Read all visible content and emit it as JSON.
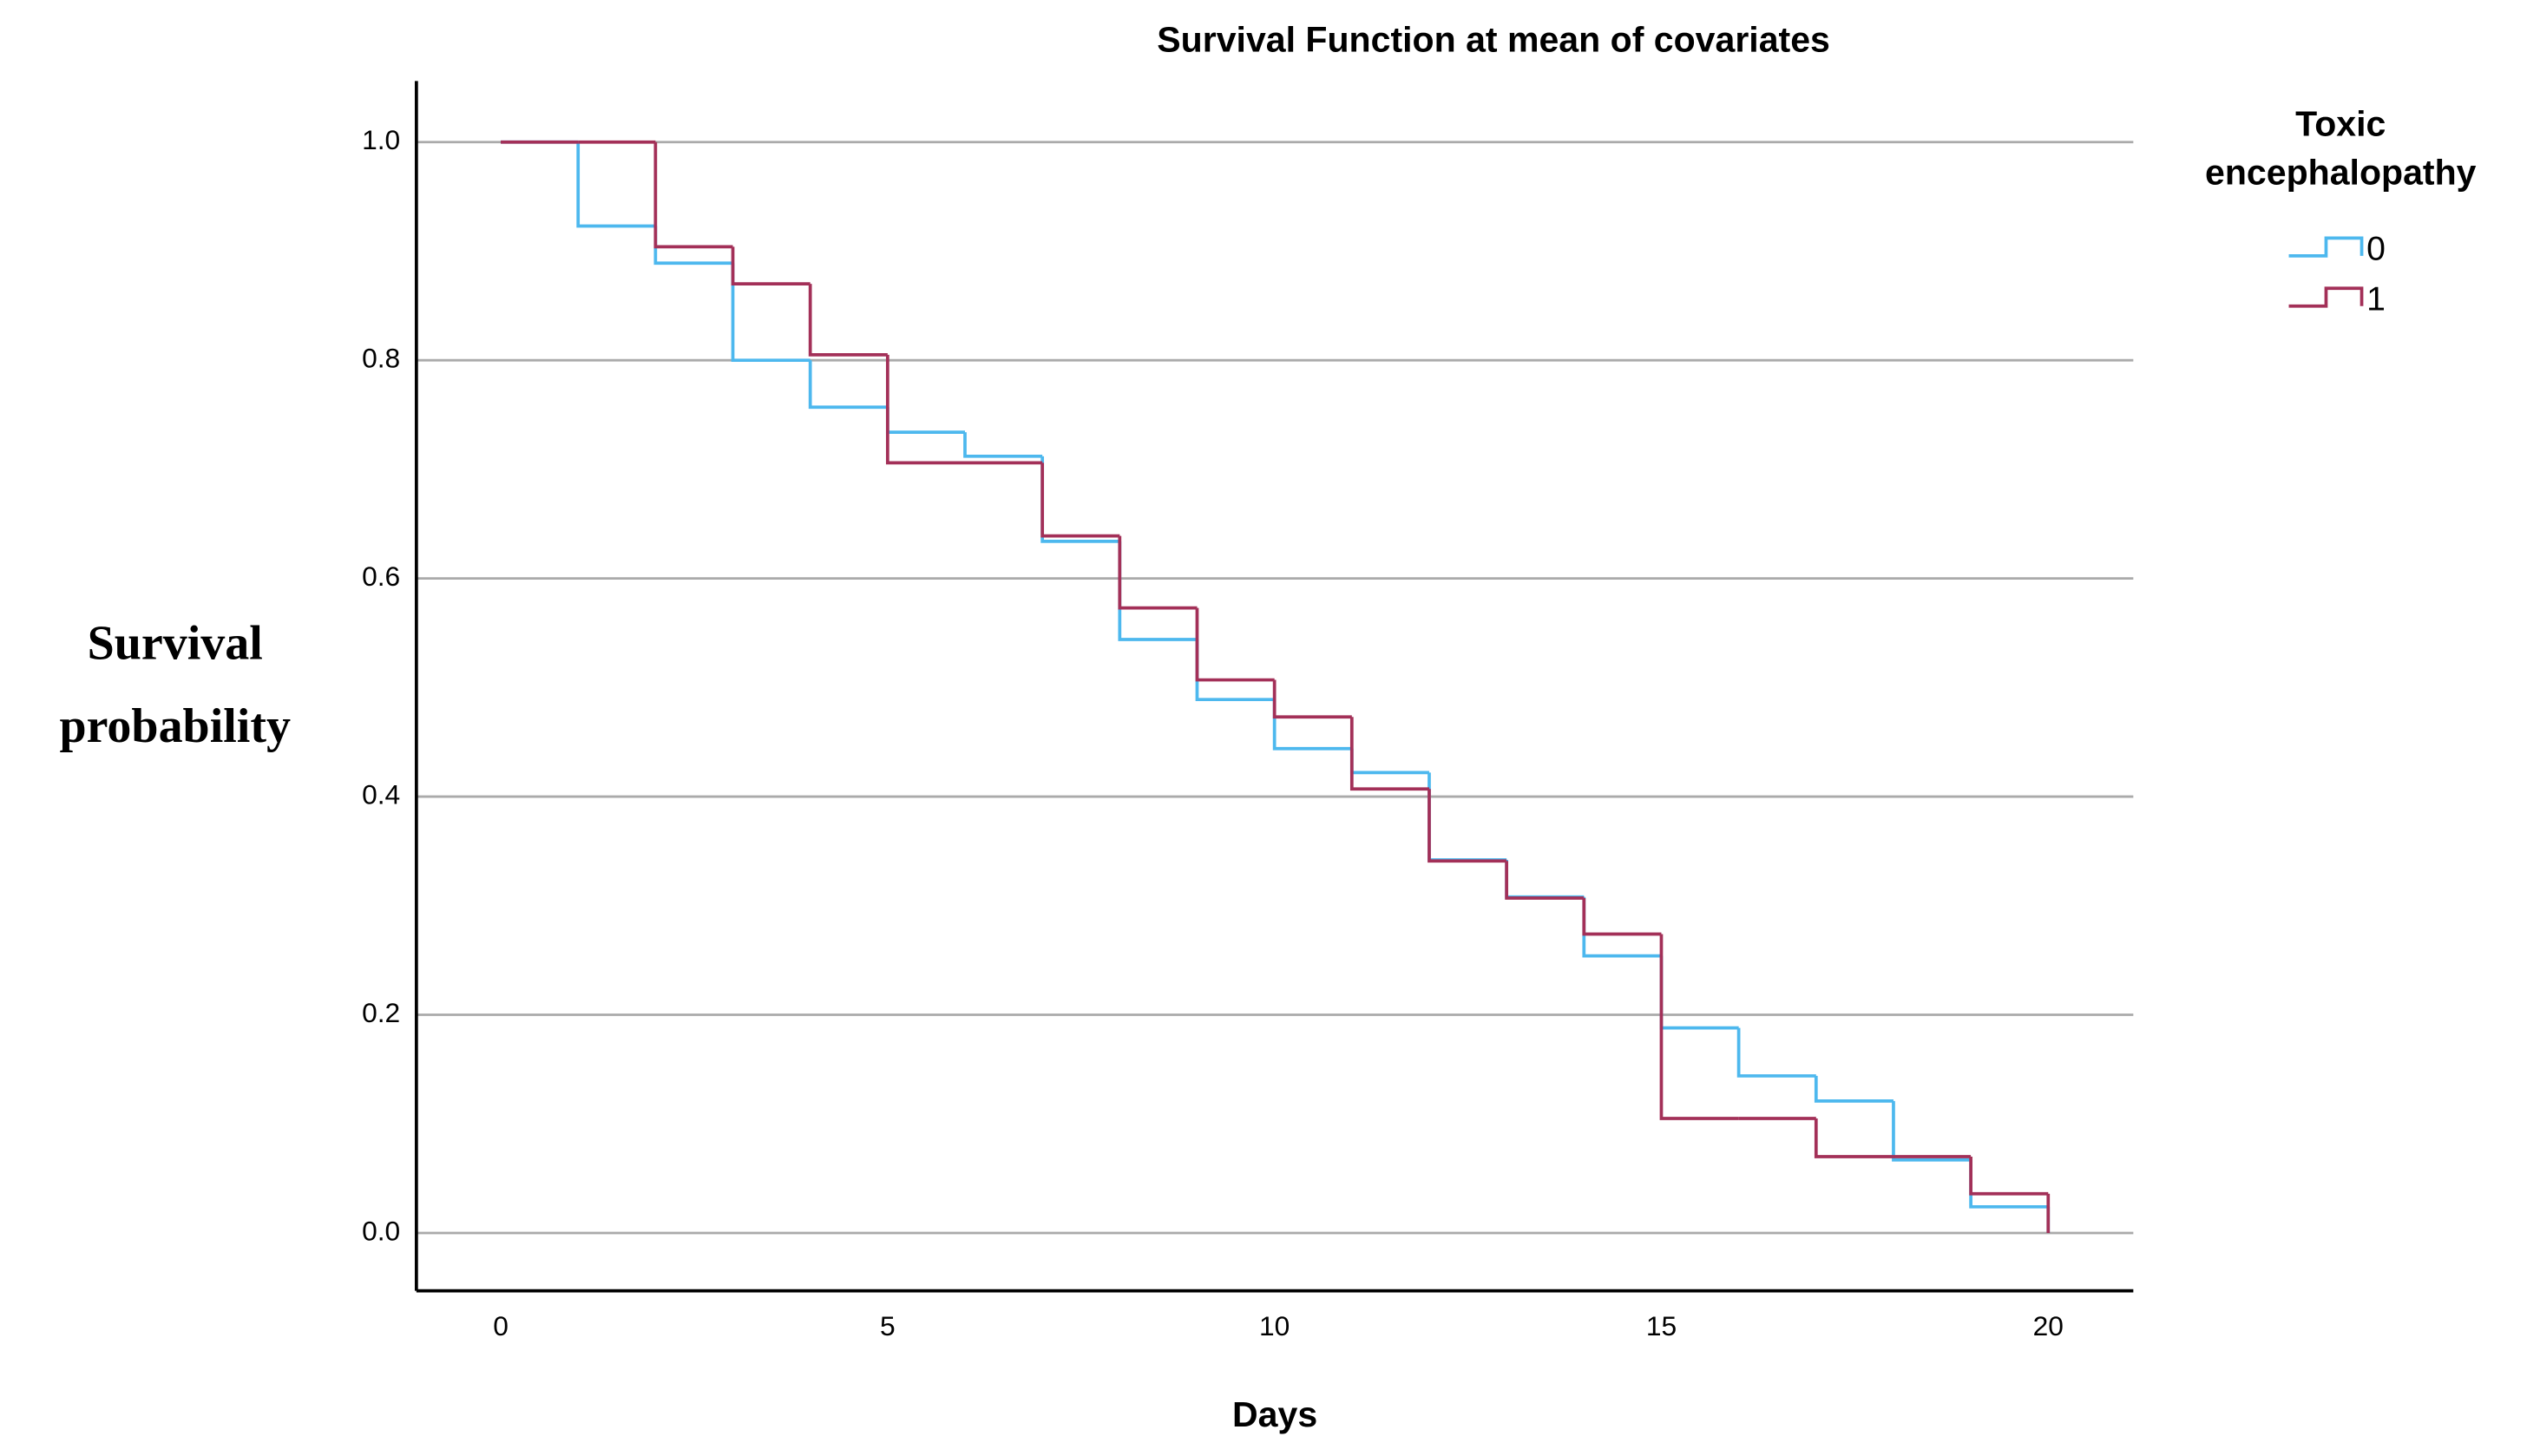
{
  "chart_data": {
    "type": "step",
    "title": "Survival Function at mean of covariates",
    "x_label": "Days",
    "y_label": "Survival probability",
    "legend_title": "Toxic encephalopathy",
    "legend_position": "right",
    "grid": true,
    "x": [
      0,
      1,
      2,
      3,
      4,
      5,
      6,
      7,
      8,
      9,
      10,
      11,
      12,
      13,
      14,
      15,
      16,
      17,
      18,
      19,
      20
    ],
    "series": [
      {
        "name": "0",
        "color": "#4db8ee",
        "values": [
          1.0,
          0.923,
          0.889,
          0.8,
          0.757,
          0.734,
          0.712,
          0.634,
          0.544,
          0.489,
          0.444,
          0.422,
          0.342,
          0.308,
          0.254,
          0.188,
          0.144,
          0.121,
          0.067,
          0.024,
          0.0
        ]
      },
      {
        "name": "1",
        "color": "#a33058",
        "values": [
          1.0,
          1.0,
          0.904,
          0.87,
          0.805,
          0.706,
          0.706,
          0.639,
          0.573,
          0.507,
          0.473,
          0.407,
          0.341,
          0.307,
          0.274,
          0.105,
          0.105,
          0.07,
          0.07,
          0.036,
          0.0
        ]
      }
    ],
    "xlim": [
      -1.09,
      21.1
    ],
    "ylim": [
      -0.053,
      1.056
    ],
    "xticks": [
      0,
      5,
      10,
      15,
      20
    ],
    "yticks": [
      {
        "value": 0,
        "label": "0.0"
      },
      0.2,
      0.4,
      0.6,
      0.8,
      {
        "value": 1,
        "label": "1.0"
      }
    ]
  }
}
